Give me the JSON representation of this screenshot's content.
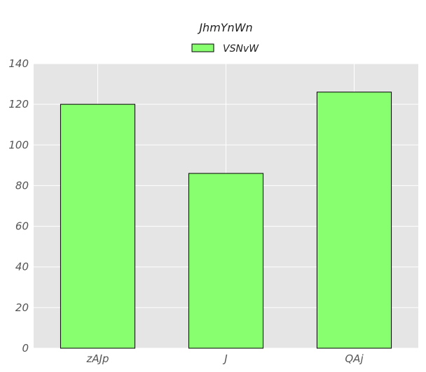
{
  "chart_data": {
    "type": "bar",
    "title": "JhmYnWn",
    "xlabel": "",
    "ylabel": "",
    "categories": [
      "zAJp",
      "J",
      "QAj"
    ],
    "series": [
      {
        "name": "VSNvW",
        "values": [
          120,
          86,
          126
        ],
        "color": "#88ff6e"
      }
    ],
    "ylim": [
      0,
      140
    ],
    "yticks": [
      0,
      20,
      40,
      60,
      80,
      100,
      120,
      140
    ],
    "grid": true,
    "legend": "top-center",
    "background": "#e5e5e5",
    "grid_color": "#ffffff",
    "edge_color": "#000000"
  }
}
